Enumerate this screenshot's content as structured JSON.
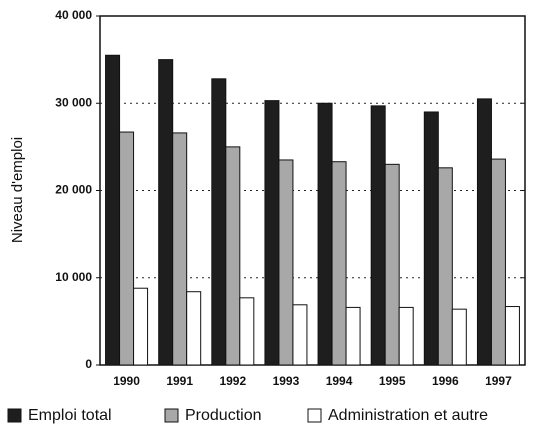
{
  "chart_data": {
    "type": "bar",
    "y_label": "Niveau d'emploi",
    "categories": [
      "1990",
      "1991",
      "1992",
      "1993",
      "1994",
      "1995",
      "1996",
      "1997"
    ],
    "series": [
      {
        "name": "Emploi total",
        "color": "#1e1e1e",
        "values": [
          35500,
          35000,
          32800,
          30300,
          30000,
          29700,
          29000,
          30500
        ]
      },
      {
        "name": "Production",
        "color": "#a8a8a8",
        "values": [
          26700,
          26600,
          25000,
          23500,
          23300,
          23000,
          22600,
          23600
        ]
      },
      {
        "name": "Administration et autre",
        "color": "#ffffff",
        "values": [
          8800,
          8400,
          7700,
          6900,
          6600,
          6600,
          6400,
          6700
        ]
      }
    ],
    "ylim": [
      0,
      40000
    ],
    "yticks": [
      0,
      {
        "value": 10000,
        "label": "10 000"
      },
      {
        "value": 20000,
        "label": "20 000"
      },
      {
        "value": 30000,
        "label": "30 000"
      },
      {
        "value": 40000,
        "label": "40 000"
      }
    ],
    "grid": true,
    "legend": "bottom"
  }
}
